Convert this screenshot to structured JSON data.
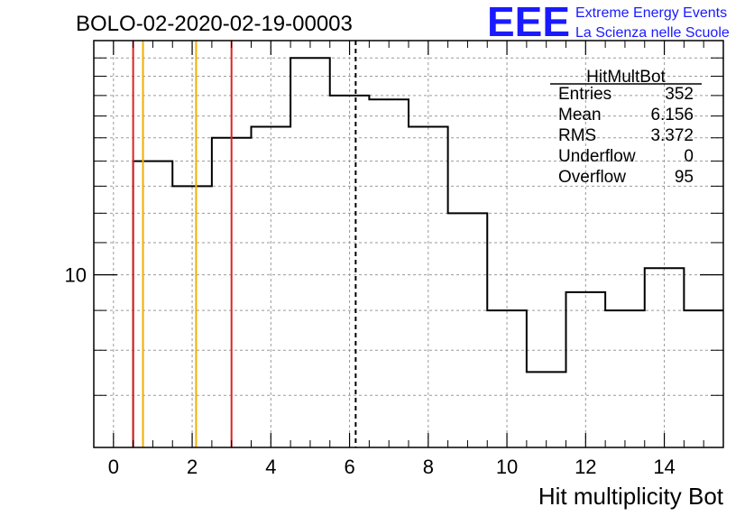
{
  "title": "BOLO-02-2020-02-19-00003",
  "logo": {
    "letters": "EEE",
    "line1": "Extreme Energy Events",
    "line2": "La Scienza nelle Scuole",
    "color": "#1a1aff"
  },
  "stats": {
    "name": "HitMultBot",
    "rows": [
      {
        "label": "Entries",
        "value": "352"
      },
      {
        "label": "Mean",
        "value": "6.156"
      },
      {
        "label": "RMS",
        "value": "3.372"
      },
      {
        "label": "Underflow",
        "value": "0"
      },
      {
        "label": "Overflow",
        "value": "95"
      }
    ]
  },
  "chart_data": {
    "type": "histogram",
    "xlabel": "Hit multiplicity Bot",
    "ylabel": "",
    "xlim": [
      -0.5,
      15.5
    ],
    "ylim": [
      6,
      20
    ],
    "log_y": true,
    "grid": true,
    "x_ticks": [
      0,
      2,
      4,
      6,
      8,
      10,
      12,
      14
    ],
    "y_tick_labels": [
      {
        "value": 10,
        "label": "10"
      }
    ],
    "bin_edges": [
      0.5,
      1.5,
      2.5,
      3.5,
      4.5,
      5.5,
      6.5,
      7.5,
      8.5,
      9.5,
      10.5,
      11.5,
      12.5,
      13.5,
      14.5,
      15.5
    ],
    "values": [
      14,
      13,
      15,
      15.5,
      19,
      17,
      16.8,
      15.5,
      12,
      9,
      7.5,
      9.5,
      9,
      10.2,
      9
    ],
    "vertical_lines": [
      {
        "x": 0.5,
        "color": "#e02020",
        "style": "solid"
      },
      {
        "x": 0.75,
        "color": "#f0b000",
        "style": "solid"
      },
      {
        "x": 2.1,
        "color": "#f0b000",
        "style": "solid"
      },
      {
        "x": 3.0,
        "color": "#e02020",
        "style": "solid"
      },
      {
        "x": 6.156,
        "color": "#000000",
        "style": "dashed"
      }
    ]
  }
}
